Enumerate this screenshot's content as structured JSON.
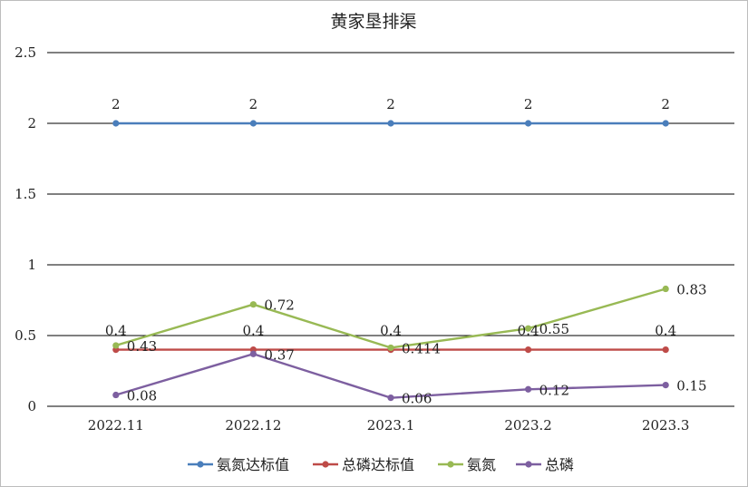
{
  "chart_data": {
    "type": "line",
    "title": "黄家垦排渠",
    "xlabel": "",
    "ylabel": "",
    "categories": [
      "2022.11",
      "2022.12",
      "2023.1",
      "2023.2",
      "2023.3"
    ],
    "ylim": [
      0,
      2.5
    ],
    "yticks": [
      "0",
      "0.5",
      "1",
      "1.5",
      "2",
      "2.5"
    ],
    "grid": true,
    "legend": "bottom",
    "series": [
      {
        "name": "氨氮达标值",
        "color": "#4a7ebb",
        "values": [
          2,
          2,
          2,
          2,
          2
        ],
        "labels": [
          "2",
          "2",
          "2",
          "2",
          "2"
        ]
      },
      {
        "name": "总磷达标值",
        "color": "#be4b48",
        "values": [
          0.4,
          0.4,
          0.4,
          0.4,
          0.4
        ],
        "labels": [
          "0.4",
          "0.4",
          "0.4",
          "0.4",
          "0.4"
        ]
      },
      {
        "name": "氨氮",
        "color": "#98b954",
        "values": [
          0.43,
          0.72,
          0.414,
          0.55,
          0.83
        ],
        "labels": [
          "0.43",
          "0.72",
          "0.414",
          "0.55",
          "0.83"
        ]
      },
      {
        "name": "总磷",
        "color": "#7d5fa0",
        "values": [
          0.08,
          0.37,
          0.06,
          0.12,
          0.15
        ],
        "labels": [
          "0.08",
          "0.37",
          "0.06",
          "0.12",
          "0.15"
        ]
      }
    ]
  }
}
